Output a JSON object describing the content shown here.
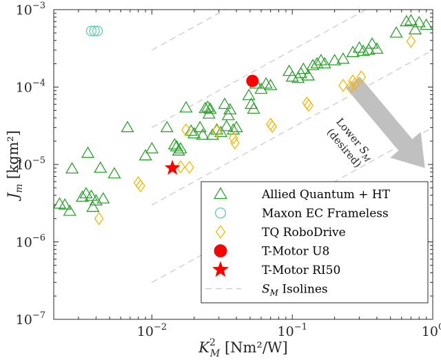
{
  "chart_data": {
    "type": "scatter",
    "x_scale": "log",
    "y_scale": "log",
    "xlim": [
      0.002,
      1.0
    ],
    "ylim": [
      1e-07,
      0.001
    ],
    "xlabel": {
      "base": "K",
      "sup": "2",
      "sub": "M",
      "unit": "[Nm²/W]"
    },
    "ylabel": {
      "base": "J",
      "sub": "m",
      "unit": "[kgm²]"
    },
    "x_ticks": [
      {
        "value": 0.01,
        "base": "10",
        "exp": "−2"
      },
      {
        "value": 0.1,
        "base": "10",
        "exp": "−1"
      },
      {
        "value": 1.0,
        "base": "10",
        "exp": "0"
      }
    ],
    "y_ticks": [
      {
        "value": 1e-07,
        "base": "10",
        "exp": "−7"
      },
      {
        "value": 1e-06,
        "base": "10",
        "exp": "−6"
      },
      {
        "value": 1e-05,
        "base": "10",
        "exp": "−5"
      },
      {
        "value": 0.0001,
        "base": "10",
        "exp": "−4"
      },
      {
        "value": 0.001,
        "base": "10",
        "exp": "−3"
      }
    ],
    "grid": false,
    "legend_position": "bottom-right",
    "colors": {
      "allied": "#2ca02c",
      "maxon": "#5fc9b0",
      "tq": "#f2b705",
      "tmotor_u8": "#ff0000",
      "tmotor_ri50": "#ff0000",
      "isolines": "#c8c8c8",
      "arrow": "#c0c0c0"
    },
    "series": [
      {
        "name": "Allied Quantum + HT",
        "marker": "triangle",
        "color_key": "allied",
        "points": [
          [
            0.0022,
            3.1e-06
          ],
          [
            0.0024,
            3e-06
          ],
          [
            0.0026,
            2.5e-06
          ],
          [
            0.0027,
            8.8e-06
          ],
          [
            0.0032,
            3.8e-06
          ],
          [
            0.0034,
            4.2e-06
          ],
          [
            0.0035,
            1.4e-05
          ],
          [
            0.0037,
            3.9e-06
          ],
          [
            0.0038,
            2.8e-06
          ],
          [
            0.004,
            3.4e-06
          ],
          [
            0.0043,
            9e-06
          ],
          [
            0.0045,
            3.6e-06
          ],
          [
            0.0054,
            7.6e-06
          ],
          [
            0.0067,
            3e-05
          ],
          [
            0.009,
            1.3e-05
          ],
          [
            0.01,
            1.6e-05
          ],
          [
            0.0128,
            3e-05
          ],
          [
            0.0145,
            1.8e-05
          ],
          [
            0.015,
            1.7e-05
          ],
          [
            0.0155,
            1.5e-05
          ],
          [
            0.016,
            1.6e-05
          ],
          [
            0.0175,
            5.4e-05
          ],
          [
            0.019,
            2.7e-05
          ],
          [
            0.02,
            2.5e-05
          ],
          [
            0.022,
            3e-05
          ],
          [
            0.023,
            2.4e-05
          ],
          [
            0.024,
            5.3e-05
          ],
          [
            0.025,
            5.5e-05
          ],
          [
            0.0255,
            4.5e-05
          ],
          [
            0.026,
            5.2e-05
          ],
          [
            0.027,
            2.4e-05
          ],
          [
            0.029,
            2.8e-05
          ],
          [
            0.031,
            2.6e-05
          ],
          [
            0.033,
            6e-05
          ],
          [
            0.034,
            3.1e-05
          ],
          [
            0.035,
            4.3e-05
          ],
          [
            0.036,
            5.1e-05
          ],
          [
            0.038,
            2.8e-05
          ],
          [
            0.04,
            3e-05
          ],
          [
            0.049,
            7.8e-05
          ],
          [
            0.051,
            6e-05
          ],
          [
            0.053,
            5.2e-05
          ],
          [
            0.055,
            0.00011
          ],
          [
            0.06,
            9.4e-05
          ],
          [
            0.065,
            0.00011
          ],
          [
            0.07,
            0.000105
          ],
          [
            0.095,
            0.00016
          ],
          [
            0.1,
            0.000135
          ],
          [
            0.11,
            0.00013
          ],
          [
            0.115,
            0.00015
          ],
          [
            0.12,
            0.00017
          ],
          [
            0.13,
            0.00014
          ],
          [
            0.14,
            0.00019
          ],
          [
            0.15,
            0.0002
          ],
          [
            0.16,
            0.00022
          ],
          [
            0.17,
            0.0002
          ],
          [
            0.2,
            0.00022
          ],
          [
            0.23,
            0.00023
          ],
          [
            0.27,
            0.00028
          ],
          [
            0.3,
            0.00032
          ],
          [
            0.32,
            0.00029
          ],
          [
            0.35,
            0.0003
          ],
          [
            0.37,
            0.00036
          ],
          [
            0.4,
            0.00031
          ],
          [
            0.55,
            0.0005
          ],
          [
            0.65,
            0.0007
          ],
          [
            0.7,
            0.00072
          ],
          [
            0.75,
            0.00055
          ],
          [
            0.8,
            0.00068
          ],
          [
            0.9,
            0.00063
          ]
        ]
      },
      {
        "name": "Maxon EC Frameless",
        "marker": "circle-open",
        "color_key": "maxon",
        "points": [
          [
            0.0037,
            0.00053
          ],
          [
            0.0039,
            0.00053
          ],
          [
            0.0041,
            0.00053
          ]
        ]
      },
      {
        "name": "TQ RoboDrive",
        "marker": "diamond",
        "color_key": "tq",
        "points": [
          [
            0.0042,
            2e-06
          ],
          [
            0.008,
            5.8e-06
          ],
          [
            0.0083,
            5.3e-06
          ],
          [
            0.016,
            9.3e-06
          ],
          [
            0.0175,
            2.8e-05
          ],
          [
            0.0185,
            9.2e-06
          ],
          [
            0.029,
            2.7e-05
          ],
          [
            0.038,
            2.2e-05
          ],
          [
            0.039,
            1.9e-05
          ],
          [
            0.07,
            3.3e-05
          ],
          [
            0.072,
            3.1e-05
          ],
          [
            0.127,
            6.2e-05
          ],
          [
            0.131,
            5.8e-05
          ],
          [
            0.23,
            0.000105
          ],
          [
            0.26,
            0.0001
          ],
          [
            0.27,
            0.00012
          ],
          [
            0.28,
            0.00011
          ],
          [
            0.31,
            0.000135
          ],
          [
            0.7,
            0.00039
          ]
        ]
      },
      {
        "name": "T-Motor U8",
        "marker": "circle-filled",
        "color_key": "tmotor_u8",
        "points": [
          [
            0.052,
            0.00012
          ]
        ]
      },
      {
        "name": "T-Motor RI50",
        "marker": "star",
        "color_key": "tmotor_ri50",
        "points": [
          [
            0.014,
            9e-06
          ]
        ]
      }
    ],
    "isolines": {
      "name": "S_M Isolines",
      "label_base": "S",
      "label_sub": "M",
      "label_rest": "Isolines",
      "offsets": [
        0.0003,
        3e-05,
        3e-06,
        3e-07
      ],
      "slope": 1,
      "x_start": 0.01
    },
    "annotation": {
      "line1": "Lower",
      "line1_base": "S",
      "line1_sub": "M",
      "line2": "(desired)",
      "arrow_from": [
        0.27,
        0.000115
      ],
      "arrow_to": [
        0.88,
        9e-06
      ]
    },
    "legend": [
      {
        "label": "Allied Quantum + HT",
        "series": 0
      },
      {
        "label": "Maxon EC Frameless",
        "series": 1
      },
      {
        "label": "TQ RoboDrive",
        "series": 2
      },
      {
        "label": "T-Motor U8",
        "series": 3
      },
      {
        "label": "T-Motor RI50",
        "series": 4
      },
      {
        "label_base": "S",
        "label_sub": "M",
        "label_rest": "Isolines",
        "isoline": true
      }
    ]
  }
}
